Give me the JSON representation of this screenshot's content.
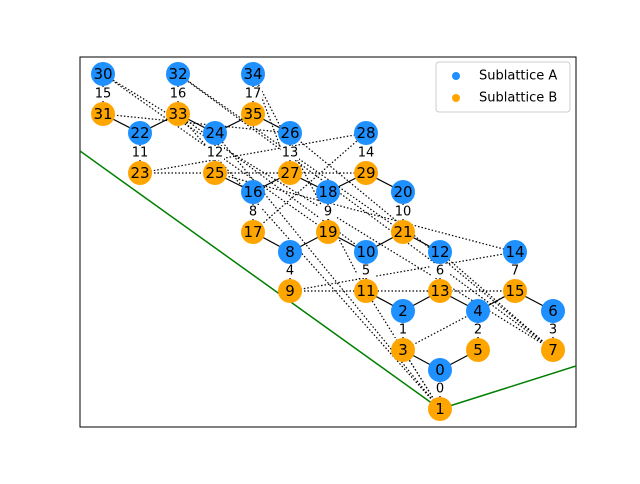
{
  "colors": {
    "sublattice_a": "#1e90ff",
    "sublattice_b": "#ffa500",
    "boundary": "#008000",
    "bond": "#000000",
    "frame": "#000000"
  },
  "legend": {
    "placement": "top-right",
    "items": [
      {
        "label": "Sublattice A",
        "color_key": "sublattice_a"
      },
      {
        "label": "Sublattice B",
        "color_key": "sublattice_b"
      }
    ]
  },
  "nodes": [
    {
      "id": "0",
      "sub": "A"
    },
    {
      "id": "1",
      "sub": "B"
    },
    {
      "id": "2",
      "sub": "A"
    },
    {
      "id": "3",
      "sub": "B"
    },
    {
      "id": "4",
      "sub": "A"
    },
    {
      "id": "5",
      "sub": "B"
    },
    {
      "id": "6",
      "sub": "A"
    },
    {
      "id": "7",
      "sub": "B"
    },
    {
      "id": "8",
      "sub": "A"
    },
    {
      "id": "9",
      "sub": "B"
    },
    {
      "id": "10",
      "sub": "A"
    },
    {
      "id": "11",
      "sub": "B"
    },
    {
      "id": "12",
      "sub": "A"
    },
    {
      "id": "13",
      "sub": "B"
    },
    {
      "id": "14",
      "sub": "A"
    },
    {
      "id": "15",
      "sub": "B"
    },
    {
      "id": "16",
      "sub": "A"
    },
    {
      "id": "17",
      "sub": "B"
    },
    {
      "id": "18",
      "sub": "A"
    },
    {
      "id": "19",
      "sub": "B"
    },
    {
      "id": "20",
      "sub": "A"
    },
    {
      "id": "21",
      "sub": "B"
    },
    {
      "id": "22",
      "sub": "A"
    },
    {
      "id": "23",
      "sub": "B"
    },
    {
      "id": "24",
      "sub": "A"
    },
    {
      "id": "25",
      "sub": "B"
    },
    {
      "id": "26",
      "sub": "A"
    },
    {
      "id": "27",
      "sub": "B"
    },
    {
      "id": "28",
      "sub": "A"
    },
    {
      "id": "29",
      "sub": "B"
    },
    {
      "id": "30",
      "sub": "A"
    },
    {
      "id": "31",
      "sub": "B"
    },
    {
      "id": "32",
      "sub": "A"
    },
    {
      "id": "33",
      "sub": "B"
    },
    {
      "id": "34",
      "sub": "A"
    },
    {
      "id": "35",
      "sub": "B"
    }
  ],
  "cell_labels": [
    "0",
    "1",
    "2",
    "3",
    "4",
    "5",
    "6",
    "7",
    "8",
    "9",
    "10",
    "11",
    "12",
    "13",
    "14",
    "15",
    "16",
    "17"
  ],
  "solid_bonds": [
    [
      "0",
      "1"
    ],
    [
      "2",
      "3"
    ],
    [
      "4",
      "5"
    ],
    [
      "6",
      "7"
    ],
    [
      "3",
      "0"
    ],
    [
      "5",
      "0"
    ],
    [
      "5",
      "4"
    ],
    [
      "2",
      "13"
    ],
    [
      "13",
      "4"
    ],
    [
      "4",
      "15"
    ],
    [
      "15",
      "6"
    ],
    [
      "2",
      "11"
    ],
    [
      "11",
      "10"
    ],
    [
      "10",
      "21"
    ],
    [
      "21",
      "12"
    ],
    [
      "10",
      "19"
    ],
    [
      "19",
      "8"
    ],
    [
      "8",
      "9"
    ],
    [
      "12",
      "13"
    ],
    [
      "8",
      "17"
    ],
    [
      "16",
      "17"
    ],
    [
      "16",
      "27"
    ],
    [
      "27",
      "18"
    ],
    [
      "18",
      "29"
    ],
    [
      "29",
      "20"
    ],
    [
      "20",
      "21"
    ],
    [
      "18",
      "19"
    ],
    [
      "16",
      "25"
    ],
    [
      "24",
      "25"
    ],
    [
      "24",
      "35"
    ],
    [
      "35",
      "26"
    ],
    [
      "26",
      "27"
    ],
    [
      "22",
      "23"
    ],
    [
      "22",
      "33"
    ],
    [
      "33",
      "24"
    ],
    [
      "22",
      "31"
    ],
    [
      "30",
      "31"
    ],
    [
      "32",
      "33"
    ],
    [
      "34",
      "35"
    ]
  ],
  "dotted_bonds": [
    [
      "1",
      "3"
    ],
    [
      "1",
      "11"
    ],
    [
      "1",
      "24"
    ],
    [
      "1",
      "33"
    ],
    [
      "9",
      "14"
    ],
    [
      "9",
      "15"
    ],
    [
      "3",
      "15"
    ],
    [
      "7",
      "26"
    ],
    [
      "7",
      "12"
    ],
    [
      "7",
      "32"
    ],
    [
      "7",
      "30"
    ],
    [
      "23",
      "28"
    ],
    [
      "23",
      "29"
    ],
    [
      "11",
      "34"
    ],
    [
      "21",
      "32"
    ],
    [
      "10",
      "33"
    ],
    [
      "19",
      "30"
    ],
    [
      "31",
      "26"
    ],
    [
      "17",
      "28"
    ],
    [
      "25",
      "14"
    ],
    [
      "27",
      "34"
    ]
  ],
  "boundary_lines": [
    {
      "name": "left-boundary"
    },
    {
      "name": "right-boundary"
    }
  ]
}
